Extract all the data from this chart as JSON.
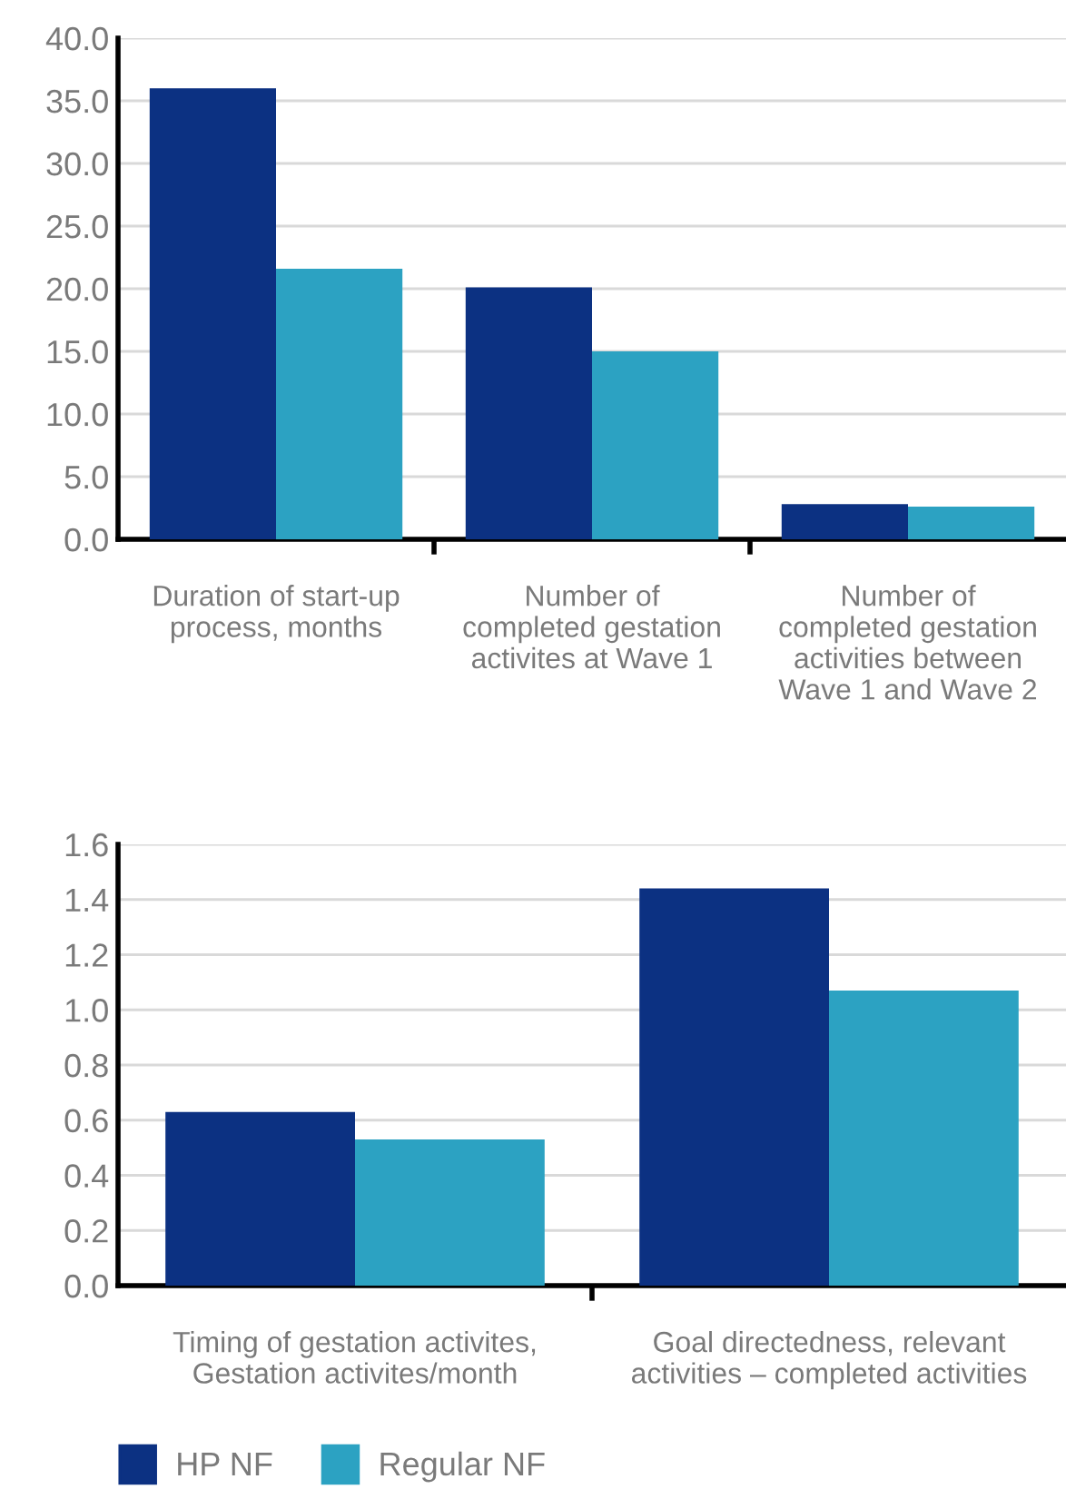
{
  "chart_data": [
    {
      "type": "bar",
      "categories": [
        "Duration of start-up\nprocess, months",
        "Number of\ncompleted gestation\nactivites at Wave 1",
        "Number of\ncompleted gestation\nactivities between\nWave 1 and Wave 2"
      ],
      "series": [
        {
          "color": "#0c3182",
          "values": [
            36.0,
            20.1,
            2.8
          ]
        },
        {
          "color": "#2ca2c2",
          "values": [
            21.6,
            15.0,
            2.6
          ]
        }
      ],
      "ylim": [
        0,
        40
      ],
      "yticks": [
        {
          "value": 0,
          "label": "0.0"
        },
        {
          "value": 5,
          "label": "5.0"
        },
        {
          "value": 10,
          "label": "10.0"
        },
        {
          "value": 15,
          "label": "15.0"
        },
        {
          "value": 20,
          "label": "20.0"
        },
        {
          "value": 25,
          "label": "25.0"
        },
        {
          "value": 30,
          "label": "30.0"
        },
        {
          "value": 35,
          "label": "35.0"
        },
        {
          "value": 40,
          "label": "40.0"
        }
      ],
      "grid": "y"
    },
    {
      "type": "bar",
      "categories": [
        "Timing of gestation activites,\nGestation activites/month",
        "Goal directedness, relevant\nactivities – completed activities"
      ],
      "series": [
        {
          "name": "HP NF",
          "color": "#0c3182",
          "values": [
            0.63,
            1.44
          ]
        },
        {
          "name": "Regular NF",
          "color": "#2ca2c2",
          "values": [
            0.53,
            1.07
          ]
        }
      ],
      "ylim": [
        0,
        1.6
      ],
      "yticks": [
        {
          "value": 0,
          "label": "0.0"
        },
        {
          "value": 0.2,
          "label": "0.2"
        },
        {
          "value": 0.4,
          "label": "0.4"
        },
        {
          "value": 0.6,
          "label": "0.6"
        },
        {
          "value": 0.8,
          "label": "0.8"
        },
        {
          "value": 1.0,
          "label": "1.0"
        },
        {
          "value": 1.2,
          "label": "1.2"
        },
        {
          "value": 1.4,
          "label": "1.4"
        },
        {
          "value": 1.6,
          "label": "1.6"
        }
      ],
      "grid": "y",
      "legend": "bottom left"
    }
  ]
}
